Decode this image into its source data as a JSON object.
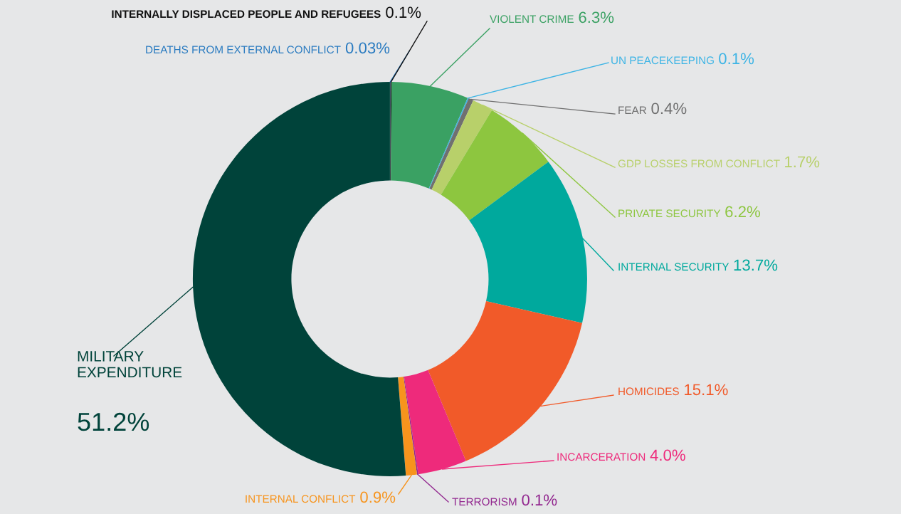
{
  "chart_data": {
    "type": "donut",
    "categories": [
      "DEATHS FROM EXTERNAL CONFLICT",
      "INTERNALLY DISPLACED PEOPLE AND REFUGEES",
      "VIOLENT CRIME",
      "UN PEACEKEEPING",
      "FEAR",
      "GDP LOSSES FROM CONFLICT",
      "PRIVATE SECURITY",
      "INTERNAL SECURITY",
      "HOMICIDES",
      "INCARCERATION",
      "TERRORISM",
      "INTERNAL CONFLICT",
      "MILITARY\nEXPENDITURE"
    ],
    "values": [
      0.03,
      0.1,
      6.3,
      0.1,
      0.4,
      1.7,
      6.2,
      13.7,
      15.1,
      4.0,
      0.1,
      0.9,
      51.2
    ],
    "value_labels": [
      "0.03%",
      "0.1%",
      "6.3%",
      "0.1%",
      "0.4%",
      "1.7%",
      "6.2%",
      "13.7%",
      "15.1%",
      "4.0%",
      "0.1%",
      "0.9%",
      "51.2%"
    ],
    "colors": [
      "#2a7bc0",
      "#111111",
      "#3aa163",
      "#3db4e5",
      "#707070",
      "#b8d06a",
      "#8dc63f",
      "#00a99d",
      "#f15a29",
      "#ee2a7b",
      "#92278f",
      "#f7941d",
      "#00433a"
    ]
  }
}
